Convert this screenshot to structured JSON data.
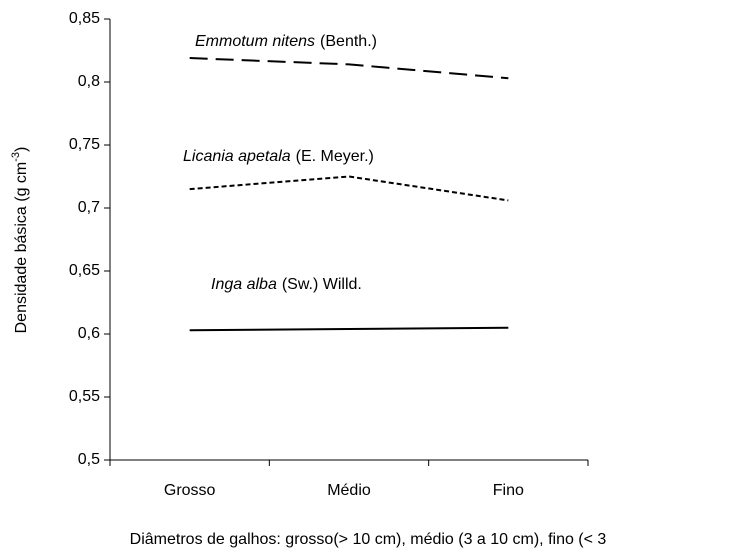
{
  "chart_data": {
    "type": "line",
    "ylabel": {
      "text": "Densidade  básica (g cm",
      "superscript": "-3",
      "suffix": ")"
    },
    "xlabel": "Diâmetros de galhos:  grosso(> 10 cm), médio (3 a 10 cm), fino (< 3",
    "categories": [
      "Grosso",
      "Médio",
      "Fino"
    ],
    "series": [
      {
        "name": "Emmotum nitens",
        "authority": "(Benth.)",
        "color": "#000000",
        "dash": "long",
        "values": [
          0.819,
          0.814,
          0.803
        ]
      },
      {
        "name": "Licania apetala",
        "authority": "(E. Meyer.)",
        "color": "#000000",
        "dash": "short",
        "values": [
          0.715,
          0.725,
          0.706
        ]
      },
      {
        "name": "Inga alba",
        "authority": "(Sw.) Willd.",
        "color": "#000000",
        "dash": "solid",
        "values": [
          0.603,
          0.604,
          0.605
        ]
      }
    ],
    "ylim": [
      0.5,
      0.85
    ],
    "yticks": [
      {
        "value": 0.5,
        "label": "0,5"
      },
      {
        "value": 0.55,
        "label": "0,55"
      },
      {
        "value": 0.6,
        "label": "0,6"
      },
      {
        "value": 0.65,
        "label": "0,65"
      },
      {
        "value": 0.7,
        "label": "0,7"
      },
      {
        "value": 0.75,
        "label": "0,75"
      },
      {
        "value": 0.8,
        "label": "0,8"
      },
      {
        "value": 0.85,
        "label": "0,85"
      }
    ]
  }
}
